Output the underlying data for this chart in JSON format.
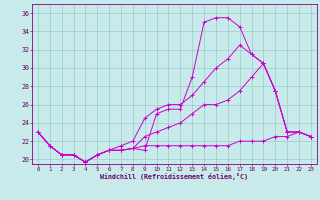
{
  "xlabel": "Windchill (Refroidissement éolien,°C)",
  "background_color": "#c8eaea",
  "line_color": "#cc00cc",
  "grid_color": "#99cccc",
  "xlim": [
    -0.5,
    23.5
  ],
  "ylim": [
    19.5,
    37.0
  ],
  "yticks": [
    20,
    22,
    24,
    26,
    28,
    30,
    32,
    34,
    36
  ],
  "xticks": [
    0,
    1,
    2,
    3,
    4,
    5,
    6,
    7,
    8,
    9,
    10,
    11,
    12,
    13,
    14,
    15,
    16,
    17,
    18,
    19,
    20,
    21,
    22,
    23
  ],
  "series": [
    [
      23.0,
      21.5,
      20.5,
      20.5,
      19.7,
      20.5,
      21.0,
      21.0,
      21.2,
      21.0,
      25.0,
      25.5,
      25.5,
      29.0,
      35.0,
      35.5,
      35.5,
      34.5,
      31.5,
      30.5,
      27.5,
      23.0,
      23.0,
      22.5
    ],
    [
      23.0,
      21.5,
      20.5,
      20.5,
      19.7,
      20.5,
      21.0,
      21.0,
      21.2,
      21.5,
      21.5,
      21.5,
      21.5,
      21.5,
      21.5,
      21.5,
      21.5,
      22.0,
      22.0,
      22.0,
      22.5,
      22.5,
      23.0,
      22.5
    ],
    [
      23.0,
      21.5,
      20.5,
      20.5,
      19.7,
      20.5,
      21.0,
      21.0,
      21.2,
      22.5,
      23.0,
      23.5,
      24.0,
      25.0,
      26.0,
      26.0,
      26.5,
      27.5,
      29.0,
      30.5,
      27.5,
      23.0,
      23.0,
      22.5
    ],
    [
      23.0,
      21.5,
      20.5,
      20.5,
      19.7,
      20.5,
      21.0,
      21.5,
      22.0,
      24.5,
      25.5,
      26.0,
      26.0,
      27.0,
      28.5,
      30.0,
      31.0,
      32.5,
      31.5,
      30.5,
      27.5,
      23.0,
      23.0,
      22.5
    ]
  ]
}
